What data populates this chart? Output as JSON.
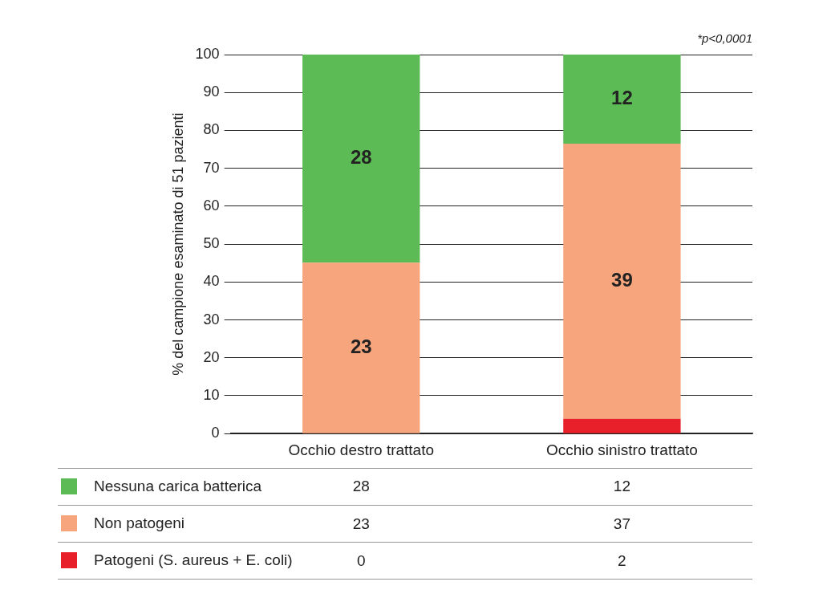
{
  "chart_data": [
    {
      "type": "bar",
      "stacked": true,
      "ylabel": "% del campione esaminato di 51 pazienti",
      "categories": [
        "Occhio destro trattato",
        "Occhio sinistro trattato"
      ],
      "series": [
        {
          "name": "Patogeni (S. aureus + E. coli)",
          "color": "#e8202a",
          "values": [
            0,
            3.9
          ]
        },
        {
          "name": "Non patogeni",
          "color": "#f6a57c",
          "values": [
            45.1,
            72.6
          ]
        },
        {
          "name": "Nessuna carica batterica",
          "color": "#5dbb55",
          "values": [
            54.9,
            23.5
          ]
        }
      ],
      "ylim": [
        0,
        100
      ],
      "yticks": [
        0,
        10,
        20,
        30,
        40,
        50,
        60,
        70,
        80,
        90,
        100
      ],
      "grid": "y",
      "legend": "bottom",
      "annotations": [
        "*p<0,0001",
        "28",
        "23",
        "12",
        "39"
      ]
    },
    {
      "type": "other",
      "annotations": [
        "28",
        "12",
        "23",
        "37",
        "0",
        "2"
      ]
    }
  ]
}
